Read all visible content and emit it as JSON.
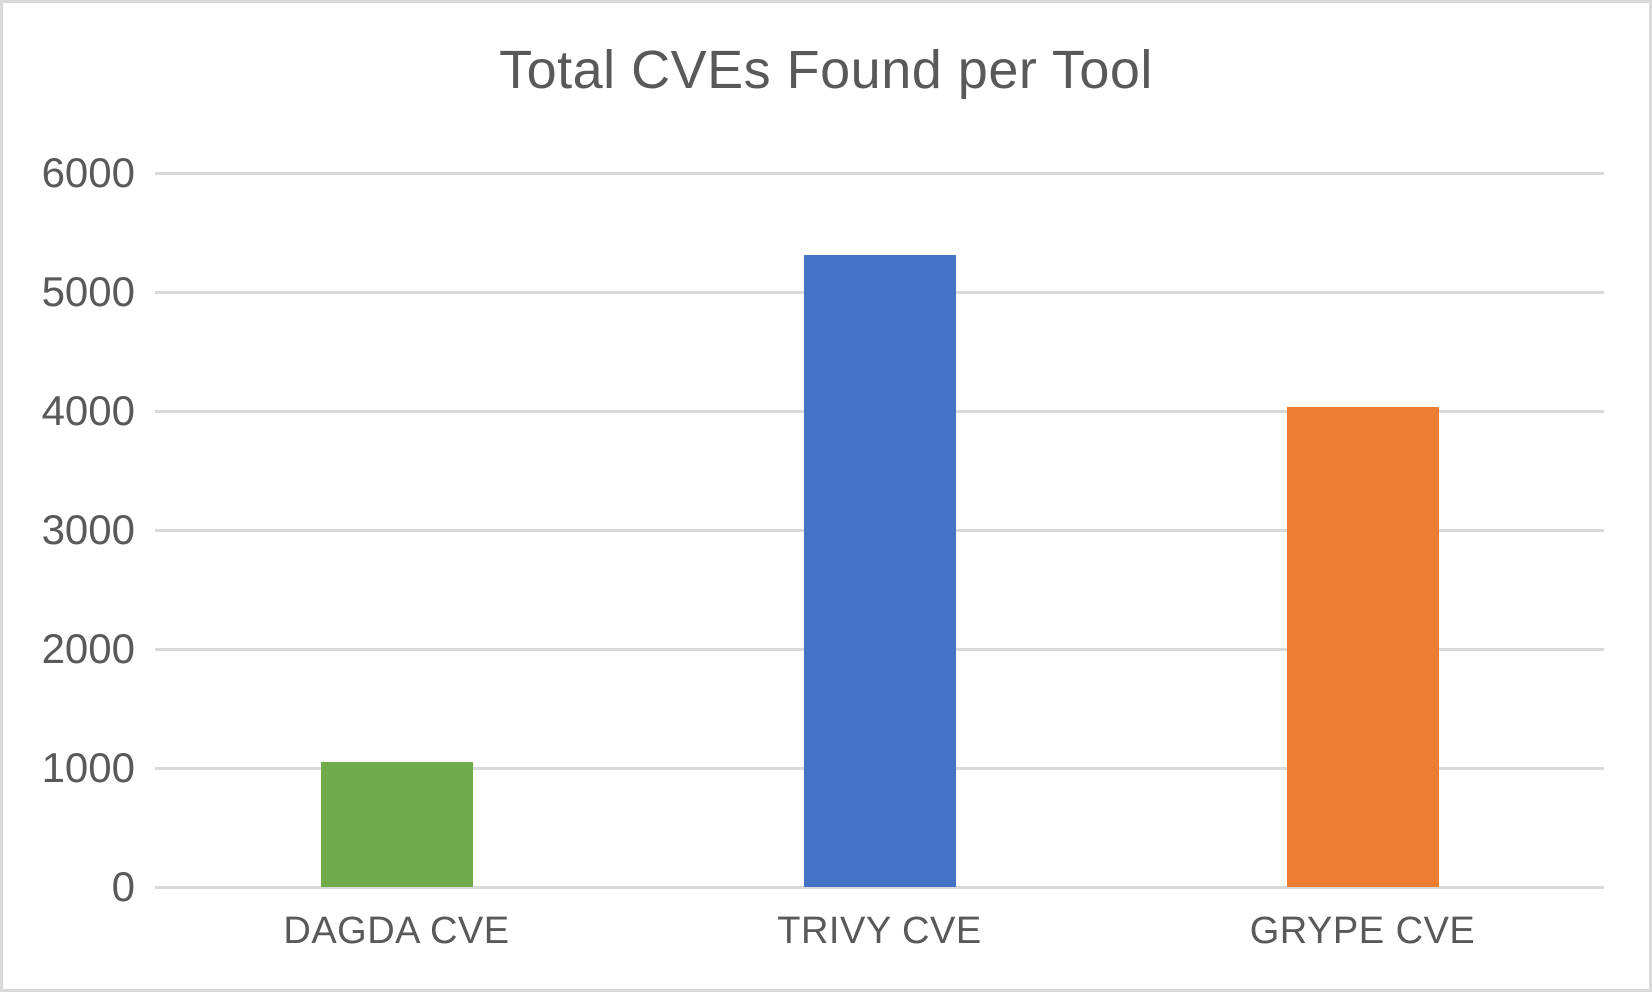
{
  "chart_data": {
    "type": "bar",
    "title": "Total CVEs Found per Tool",
    "categories": [
      "DAGDA CVE",
      "TRIVY CVE",
      "GRYPE CVE"
    ],
    "values": [
      1050,
      5310,
      4030
    ],
    "bar_colors": [
      "#6FAC49",
      "#4472C4",
      "#ED7D31"
    ],
    "xlabel": "",
    "ylabel": "",
    "ylim": [
      0,
      6000
    ],
    "yticks": [
      0,
      1000,
      2000,
      3000,
      4000,
      5000,
      6000
    ],
    "grid": "horizontal-major",
    "legend": "none"
  },
  "colors": {
    "title_text": "#595959",
    "axis_text": "#595959",
    "gridline": "#D9D9D9",
    "chart_border": "#D9D9D9",
    "background": "#FFFFFF"
  }
}
